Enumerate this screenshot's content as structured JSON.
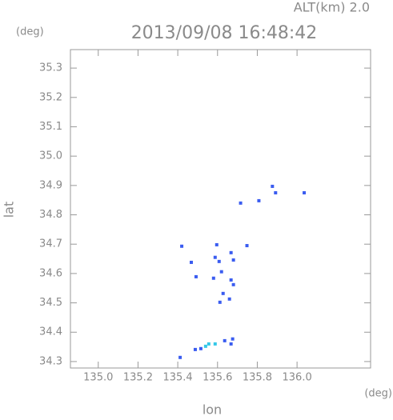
{
  "chart_data": {
    "type": "scatter",
    "title": "2013/09/08 16:48:42",
    "altitude_label": "ALT(km) 2.0",
    "y_unit": "(deg)",
    "x_unit": "(deg)",
    "x_label": "lon",
    "y_label": "lat",
    "xlim": [
      134.86,
      136.37
    ],
    "ylim": [
      34.278,
      35.363
    ],
    "xticks": [
      {
        "value": 135,
        "label": "135.0"
      },
      135.2,
      135.4,
      135.6,
      135.8,
      {
        "value": 136,
        "label": "136.0"
      }
    ],
    "yticks": [
      34.3,
      34.4,
      34.5,
      34.6,
      34.7,
      34.8,
      34.9,
      {
        "value": 35,
        "label": "35.0"
      },
      35.1,
      35.2,
      35.3
    ],
    "series": [
      {
        "color": "#3a5cf0",
        "x": [
          135.892,
          135.876,
          136.036,
          135.808,
          135.716,
          135.42,
          135.468,
          135.492,
          135.596,
          135.588,
          135.608,
          135.58,
          135.668,
          135.68,
          135.748,
          135.62,
          135.668,
          135.68,
          135.628,
          135.66,
          135.612,
          135.676,
          135.636,
          135.668,
          135.516,
          135.488,
          135.412
        ],
        "values": [
          34.875,
          34.897,
          34.875,
          34.848,
          34.84,
          34.693,
          34.638,
          34.589,
          34.698,
          34.655,
          34.641,
          34.584,
          34.671,
          34.646,
          34.695,
          34.606,
          34.578,
          34.562,
          34.532,
          34.513,
          34.502,
          34.377,
          34.371,
          34.36,
          34.344,
          34.341,
          34.314
        ]
      },
      {
        "color": "#35c8e8",
        "x": [
          135.556,
          135.54,
          135.588
        ],
        "values": [
          34.36,
          34.352,
          34.36
        ]
      }
    ]
  }
}
